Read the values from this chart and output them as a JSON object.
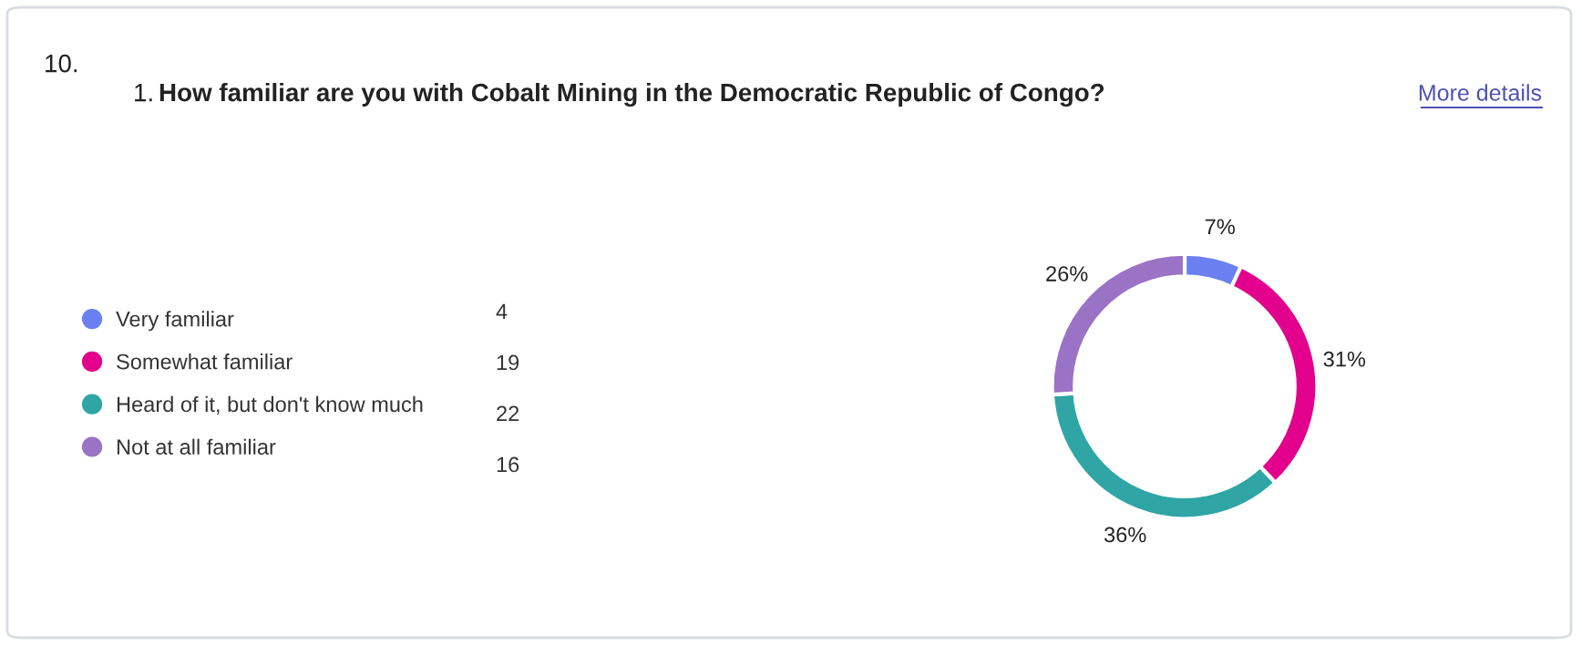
{
  "chart_data": {
    "type": "donut",
    "title": "How familiar are you with Cobalt Mining in the Democratic Republic of Congo?",
    "annotations": [
      "10.",
      "1.",
      "More details",
      "4",
      "19",
      "22",
      "16"
    ],
    "categories": [
      "Very familiar",
      "Somewhat familiar",
      "Heard of it, but don't know much",
      "Not at all familiar"
    ],
    "values": [
      7,
      31,
      36,
      26
    ],
    "value_labels": [
      "7%",
      "31%",
      "36%",
      "26%"
    ],
    "colors": [
      "#6b80f0",
      "#e3008c",
      "#2fa5a5",
      "#9a73c6"
    ],
    "legend": "left"
  }
}
